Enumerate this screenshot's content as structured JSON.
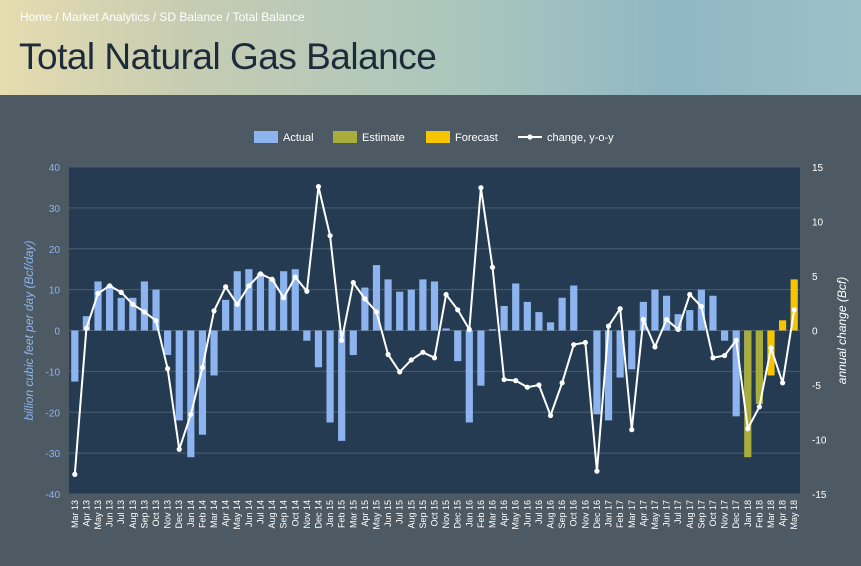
{
  "breadcrumb": {
    "home": "Home",
    "sep": " / ",
    "market": "Market Analytics",
    "sd": "SD Balance",
    "total": "Total Balance"
  },
  "page_title": "Total Natural Gas Balance",
  "colors": {
    "actual": "#8db4ef",
    "estimate": "#a9ad3b",
    "forecast": "#f6c400",
    "line": "#ffffff",
    "plot_bg": "#253b52",
    "axis_label": "#8db4ef"
  },
  "chart_data": {
    "type": "bar",
    "title": "",
    "ylabel": "billion cubic feet per day (Bcf/day)",
    "y2label": "annual change (Bcf)",
    "ylim": [
      -40,
      40
    ],
    "y2lim": [
      -15,
      15
    ],
    "yticks": [
      40,
      30,
      20,
      10,
      0,
      -10,
      -20,
      -30,
      -40
    ],
    "y2ticks": [
      15,
      10,
      5,
      0,
      -5,
      -10,
      -15
    ],
    "grid": true,
    "legend_position": "top-center",
    "legend": [
      "Actual",
      "Estimate",
      "Forecast",
      "change, y-o-y"
    ],
    "categories": [
      "Mar 13",
      "Apr 13",
      "May 13",
      "Jun 13",
      "Jul 13",
      "Aug 13",
      "Sep 13",
      "Oct 13",
      "Nov 13",
      "Dec 13",
      "Jan 14",
      "Feb 14",
      "Mar 14",
      "Apr 14",
      "May 14",
      "Jun 14",
      "Jul 14",
      "Aug 14",
      "Sep 14",
      "Oct 14",
      "Nov 14",
      "Dec 14",
      "Jan 15",
      "Feb 15",
      "Mar 15",
      "Apr 15",
      "May 15",
      "Jun 15",
      "Jul 15",
      "Aug 15",
      "Sep 15",
      "Oct 15",
      "Nov 15",
      "Dec 15",
      "Jan 16",
      "Feb 16",
      "Mar 16",
      "Apr 16",
      "May 16",
      "Jun 16",
      "Jul 16",
      "Aug 16",
      "Sep 16",
      "Oct 16",
      "Nov 16",
      "Dec 16",
      "Jan 17",
      "Feb 17",
      "Mar 17",
      "Apr 17",
      "May 17",
      "Jun 17",
      "Jul 17",
      "Aug 17",
      "Sep 17",
      "Oct 17",
      "Nov 17",
      "Dec 17",
      "Jan 18",
      "Feb 18",
      "Mar 18",
      "Apr 18",
      "May 18"
    ],
    "series": [
      {
        "name": "Actual",
        "axis": "left",
        "values": [
          -12.5,
          3.5,
          12,
          11,
          8,
          8,
          12,
          10,
          -6,
          -22,
          -31,
          -25.5,
          -11,
          7.5,
          14.5,
          15,
          14,
          12.5,
          14.5,
          15,
          -2.5,
          -9,
          -22.5,
          -27,
          -6,
          10.5,
          16,
          12.5,
          9.5,
          10,
          12.5,
          12,
          0.5,
          -7.5,
          -22.5,
          -13.5,
          0.3,
          6,
          11.5,
          7,
          4.5,
          2,
          8,
          11,
          0,
          -20.5,
          -22,
          -11.5,
          -9.5,
          7,
          10,
          8.5,
          4,
          5,
          10,
          8.5,
          -2.5,
          -21,
          -14.5,
          -16,
          -3.5,
          0,
          0
        ]
      },
      {
        "name": "Estimate",
        "axis": "left",
        "values": [
          0,
          0,
          0,
          0,
          0,
          0,
          0,
          0,
          0,
          0,
          0,
          0,
          0,
          0,
          0,
          0,
          0,
          0,
          0,
          0,
          0,
          0,
          0,
          0,
          0,
          0,
          0,
          0,
          0,
          0,
          0,
          0,
          0,
          0,
          0,
          0,
          0,
          0,
          0,
          0,
          0,
          0,
          0,
          0,
          0,
          0,
          0,
          0,
          0,
          0,
          0,
          0,
          0,
          0,
          0,
          0,
          0,
          0,
          -31,
          -18,
          0,
          0,
          0
        ]
      },
      {
        "name": "Forecast",
        "axis": "left",
        "values": [
          0,
          0,
          0,
          0,
          0,
          0,
          0,
          0,
          0,
          0,
          0,
          0,
          0,
          0,
          0,
          0,
          0,
          0,
          0,
          0,
          0,
          0,
          0,
          0,
          0,
          0,
          0,
          0,
          0,
          0,
          0,
          0,
          0,
          0,
          0,
          0,
          0,
          0,
          0,
          0,
          0,
          0,
          0,
          0,
          0,
          0,
          0,
          0,
          0,
          0,
          0,
          0,
          0,
          0,
          0,
          0,
          0,
          0,
          0,
          0,
          -11,
          2.5,
          12.5
        ]
      },
      {
        "name": "change, y-o-y",
        "axis": "right",
        "type": "line",
        "values": [
          -13.2,
          0.2,
          3.4,
          4.1,
          3.5,
          2.4,
          1.7,
          0.9,
          -3.5,
          -10.9,
          -7.7,
          -3.4,
          1.8,
          4,
          2.4,
          4.1,
          5.2,
          4.7,
          3,
          4.9,
          3.6,
          13.2,
          8.7,
          -0.9,
          4.4,
          2.9,
          1.7,
          -2.2,
          -3.8,
          -2.7,
          -2,
          -2.5,
          3.3,
          1.9,
          0.1,
          13.1,
          5.8,
          -4.5,
          -4.6,
          -5.2,
          -5,
          -7.8,
          -4.8,
          -1.3,
          -1.1,
          -12.9,
          0.4,
          2,
          -9.1,
          1,
          -1.5,
          1,
          0.1,
          3.3,
          2.2,
          -2.5,
          -2.3,
          -0.9,
          -9,
          -7,
          -1.6,
          -4.8,
          1.9
        ]
      }
    ]
  }
}
